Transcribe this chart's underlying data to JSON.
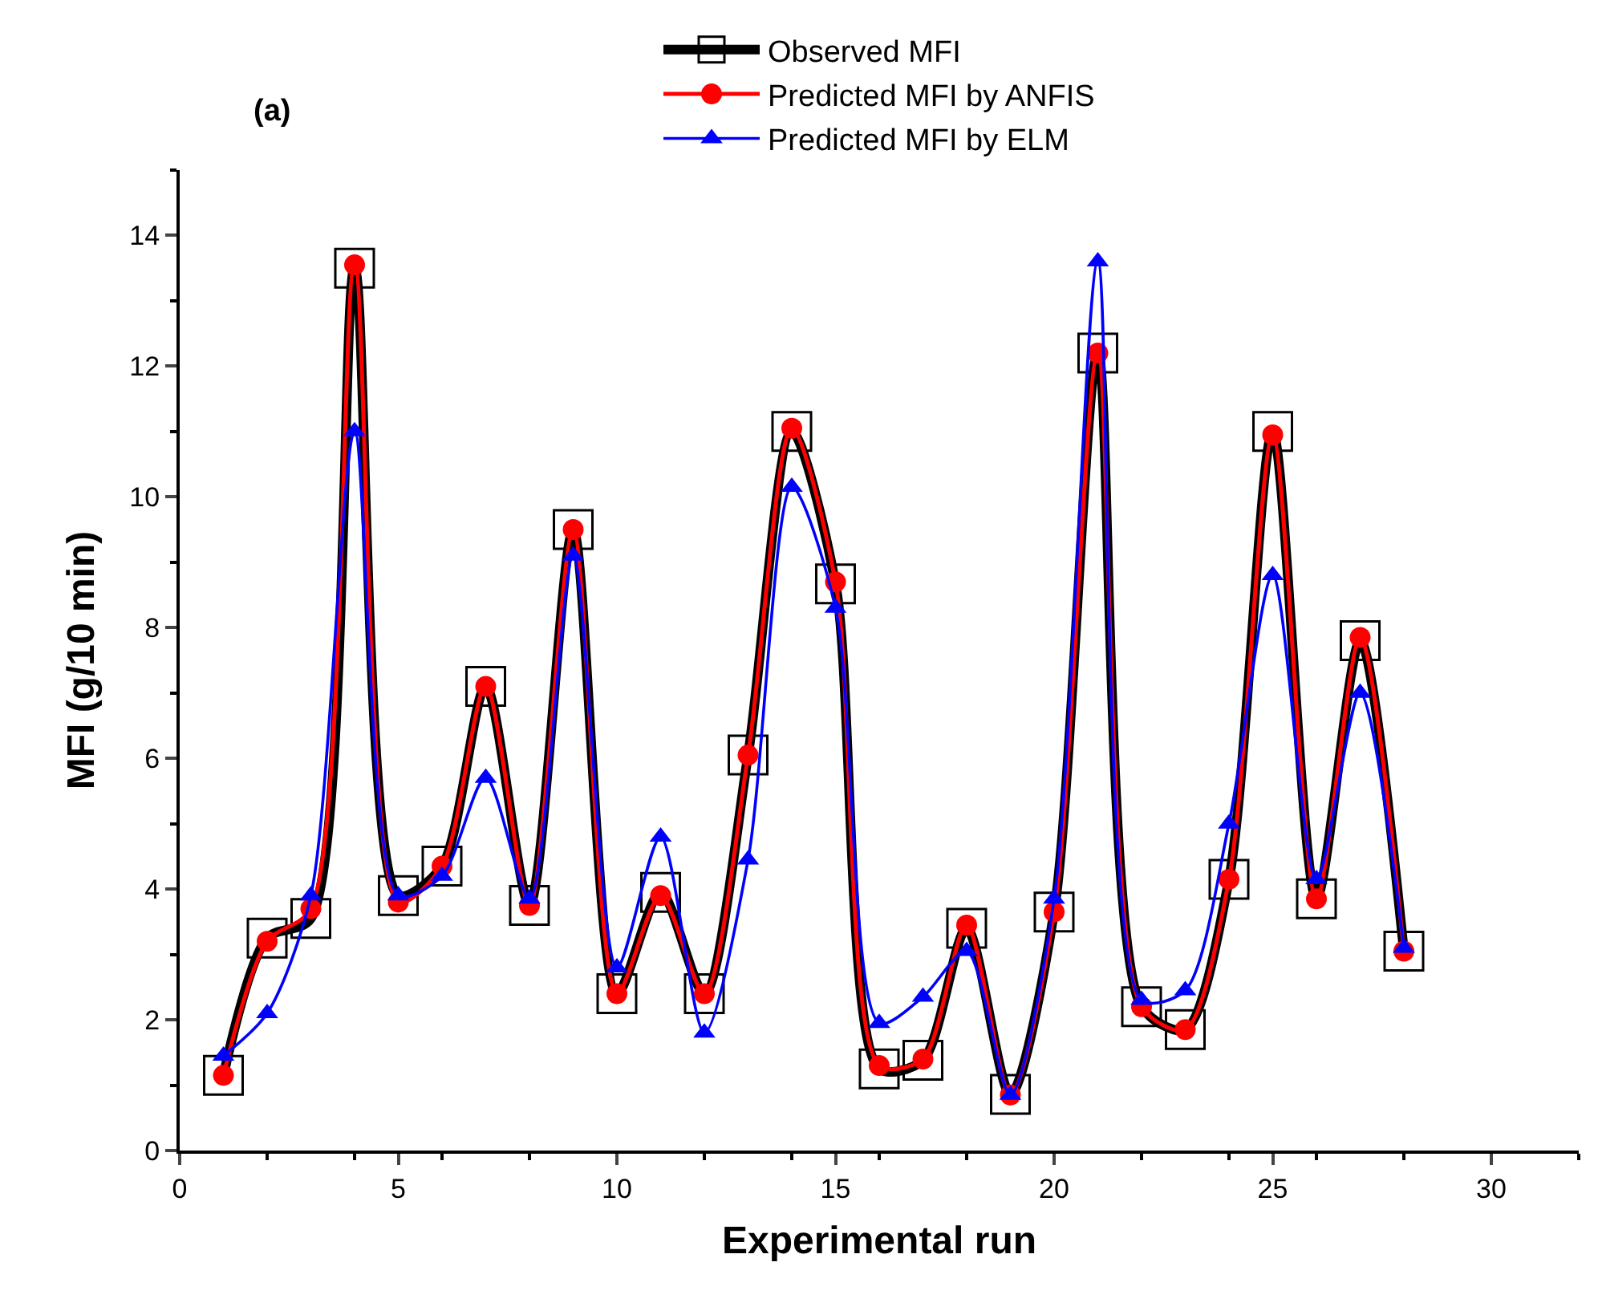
{
  "chart_data": {
    "type": "line",
    "xlabel": "Experimental run",
    "ylabel": "MFI (g/10 min)",
    "annotations": [
      "(a)"
    ],
    "x": [
      1,
      2,
      3,
      4,
      5,
      6,
      7,
      8,
      9,
      10,
      11,
      12,
      13,
      14,
      15,
      16,
      17,
      18,
      19,
      20,
      21,
      22,
      23,
      24,
      25,
      26,
      27,
      28
    ],
    "xlim": [
      0,
      32
    ],
    "xticks": [
      0,
      5,
      10,
      15,
      20,
      25,
      30
    ],
    "ylim": [
      0,
      15
    ],
    "yticks": [
      0,
      2,
      4,
      6,
      8,
      10,
      12,
      14
    ],
    "legend": "top",
    "line_style": "solid",
    "series": [
      {
        "name": "Observed MFI",
        "color": "#000000",
        "marker": "square",
        "values": [
          1.15,
          3.25,
          3.55,
          13.5,
          3.9,
          4.35,
          7.1,
          3.75,
          9.5,
          2.4,
          3.95,
          2.4,
          6.05,
          11.0,
          8.67,
          1.25,
          1.38,
          3.4,
          0.86,
          3.65,
          12.2,
          2.2,
          1.85,
          4.15,
          11.0,
          3.85,
          7.8,
          3.05
        ]
      },
      {
        "name": "Predicted MFI by ANFIS",
        "color": "#ff0000",
        "marker": "circle",
        "values": [
          1.15,
          3.2,
          3.7,
          13.55,
          3.8,
          4.35,
          7.1,
          3.75,
          9.5,
          2.4,
          3.9,
          2.4,
          6.05,
          11.05,
          8.7,
          1.3,
          1.4,
          3.45,
          0.85,
          3.65,
          12.2,
          2.2,
          1.85,
          4.15,
          10.95,
          3.85,
          7.85,
          3.05
        ]
      },
      {
        "name": "Predicted MFI by ELM",
        "color": "#0000ff",
        "marker": "triangle",
        "values": [
          1.45,
          2.1,
          3.9,
          11.0,
          3.9,
          4.2,
          5.7,
          3.85,
          9.1,
          2.8,
          4.8,
          1.8,
          4.45,
          10.15,
          8.3,
          1.95,
          2.35,
          3.05,
          0.85,
          3.85,
          13.6,
          2.3,
          2.45,
          5.0,
          8.8,
          4.15,
          7.0,
          3.1
        ]
      }
    ]
  }
}
